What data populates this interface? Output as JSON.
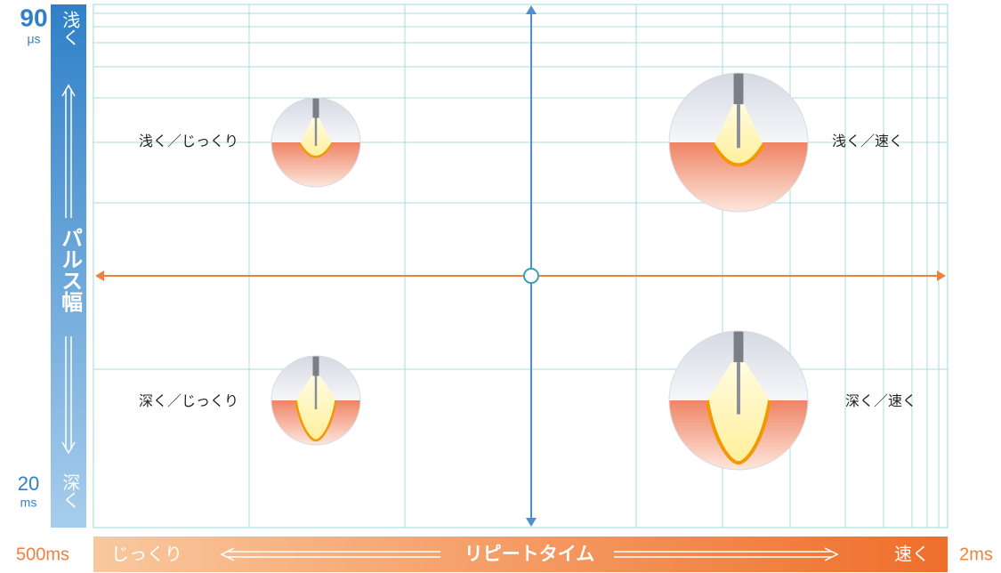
{
  "axis_y": {
    "top_value": "90",
    "top_unit": "μs",
    "top_label": "浅く",
    "title": "パルス幅",
    "bottom_label": "深く",
    "bottom_value": "20",
    "bottom_unit": "ms"
  },
  "axis_x": {
    "left_value": "500ms",
    "left_label": "じっくり",
    "title": "リピートタイム",
    "right_label": "速く",
    "right_value": "2ms"
  },
  "quadrants": [
    {
      "label": "浅く／じっくり"
    },
    {
      "label": "浅く／速く"
    },
    {
      "label": "深く／じっくり"
    },
    {
      "label": "深く／速く"
    }
  ]
}
